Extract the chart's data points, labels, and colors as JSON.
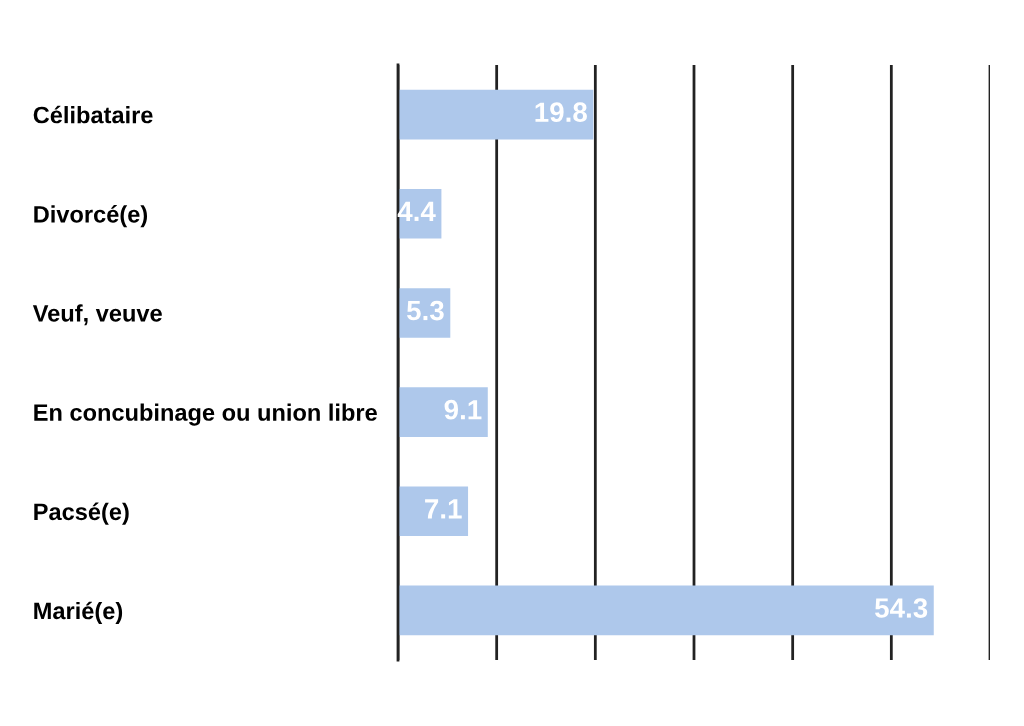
{
  "chart_data": {
    "type": "bar",
    "orientation": "horizontal",
    "categories": [
      "Célibataire",
      "Divorcé(e)",
      "Veuf, veuve",
      "En concubinage ou union libre",
      "Pacsé(e)",
      "Marié(e)"
    ],
    "values": [
      19.8,
      4.4,
      5.3,
      9.1,
      7.1,
      54.3
    ],
    "color": "#aec8eb",
    "xlim": [
      0,
      60
    ],
    "xticks": [
      {
        "value": 0,
        "label": null
      },
      {
        "value": 10,
        "label": null
      },
      {
        "value": 20,
        "label": null
      },
      {
        "value": 30,
        "label": null
      },
      {
        "value": 40,
        "label": null
      },
      {
        "value": 50,
        "label": null
      },
      {
        "value": 60,
        "label": null
      }
    ],
    "grid": "x",
    "data_labels": true,
    "tick_labels": "y"
  }
}
